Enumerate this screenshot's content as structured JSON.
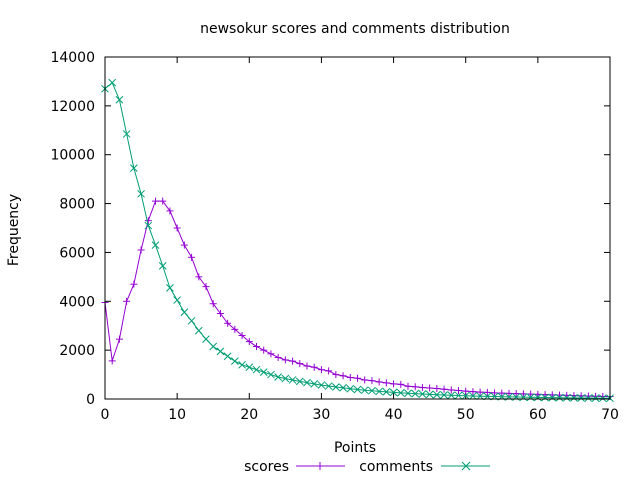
{
  "chart_data": {
    "type": "line",
    "title": "newsokur scores and comments distribution",
    "xlabel": "Points",
    "ylabel": "Frequency",
    "xlim": [
      0,
      70
    ],
    "ylim": [
      0,
      14000
    ],
    "xticks": [
      0,
      10,
      20,
      30,
      40,
      50,
      60,
      70
    ],
    "yticks": [
      0,
      2000,
      4000,
      6000,
      8000,
      10000,
      12000,
      14000
    ],
    "grid": false,
    "legend_position": "bottom-center",
    "series": [
      {
        "name": "scores",
        "color": "#9400d3",
        "marker": "plus",
        "x": [
          0,
          1,
          2,
          3,
          4,
          5,
          6,
          7,
          8,
          9,
          10,
          11,
          12,
          13,
          14,
          15,
          16,
          17,
          18,
          19,
          20,
          21,
          22,
          23,
          24,
          25,
          26,
          27,
          28,
          29,
          30,
          31,
          32,
          33,
          34,
          35,
          36,
          37,
          38,
          39,
          40,
          41,
          42,
          43,
          44,
          45,
          46,
          47,
          48,
          49,
          50,
          51,
          52,
          53,
          54,
          55,
          56,
          57,
          58,
          59,
          60,
          61,
          62,
          63,
          64,
          65,
          66,
          67,
          68,
          69,
          70
        ],
        "values": [
          3950,
          1560,
          2450,
          4000,
          4700,
          6100,
          7300,
          8100,
          8100,
          7700,
          7000,
          6300,
          5800,
          5000,
          4600,
          3900,
          3500,
          3100,
          2850,
          2600,
          2350,
          2150,
          2000,
          1850,
          1700,
          1600,
          1550,
          1450,
          1350,
          1300,
          1200,
          1150,
          1000,
          950,
          880,
          850,
          780,
          750,
          700,
          660,
          620,
          600,
          520,
          500,
          470,
          450,
          430,
          400,
          370,
          350,
          320,
          300,
          280,
          270,
          250,
          240,
          230,
          220,
          210,
          200,
          190,
          180,
          170,
          160,
          150,
          140,
          130,
          120,
          110,
          105,
          100
        ]
      },
      {
        "name": "comments",
        "color": "#009e73",
        "marker": "cross",
        "x": [
          0,
          1,
          2,
          3,
          4,
          5,
          6,
          7,
          8,
          9,
          10,
          11,
          12,
          13,
          14,
          15,
          16,
          17,
          18,
          19,
          20,
          21,
          22,
          23,
          24,
          25,
          26,
          27,
          28,
          29,
          30,
          31,
          32,
          33,
          34,
          35,
          36,
          37,
          38,
          39,
          40,
          41,
          42,
          43,
          44,
          45,
          46,
          47,
          48,
          49,
          50,
          51,
          52,
          53,
          54,
          55,
          56,
          57,
          58,
          59,
          60,
          61,
          62,
          63,
          64,
          65,
          66,
          67,
          68,
          69,
          70
        ],
        "values": [
          12700,
          12950,
          12250,
          10850,
          9450,
          8400,
          7100,
          6300,
          5450,
          4550,
          4050,
          3550,
          3200,
          2800,
          2450,
          2150,
          1950,
          1750,
          1550,
          1400,
          1300,
          1200,
          1100,
          1000,
          900,
          840,
          780,
          720,
          670,
          620,
          570,
          530,
          490,
          460,
          420,
          390,
          360,
          340,
          310,
          290,
          270,
          250,
          235,
          220,
          205,
          190,
          175,
          165,
          155,
          145,
          135,
          125,
          115,
          108,
          100,
          93,
          86,
          80,
          75,
          70,
          65,
          60,
          56,
          52,
          48,
          45,
          42,
          39,
          36,
          34,
          32
        ]
      }
    ]
  }
}
